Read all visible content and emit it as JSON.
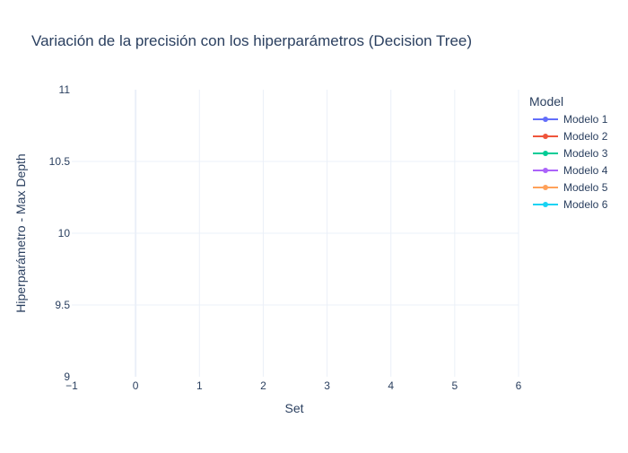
{
  "chart_data": {
    "type": "line",
    "title": "Variación de la precisión con los hiperparámetros (Decision Tree)",
    "xlabel": "Set",
    "ylabel": "Hiperparámetro - Max Depth",
    "xlim": [
      -1,
      6
    ],
    "ylim": [
      9,
      11
    ],
    "x_ticks": [
      "−1",
      "0",
      "1",
      "2",
      "3",
      "4",
      "5",
      "6"
    ],
    "y_ticks": [
      "9",
      "9.5",
      "10",
      "10.5",
      "11"
    ],
    "grid": true,
    "legend_position": "right",
    "legend_title": "Model",
    "series": [
      {
        "name": "Modelo 1",
        "color": "#636efa",
        "x": [],
        "y": []
      },
      {
        "name": "Modelo 2",
        "color": "#ef553b",
        "x": [],
        "y": []
      },
      {
        "name": "Modelo 3",
        "color": "#00cc96",
        "x": [],
        "y": []
      },
      {
        "name": "Modelo 4",
        "color": "#ab63fa",
        "x": [],
        "y": []
      },
      {
        "name": "Modelo 5",
        "color": "#ffa15a",
        "x": [],
        "y": []
      },
      {
        "name": "Modelo 6",
        "color": "#19d3f3",
        "x": [],
        "y": []
      }
    ]
  }
}
